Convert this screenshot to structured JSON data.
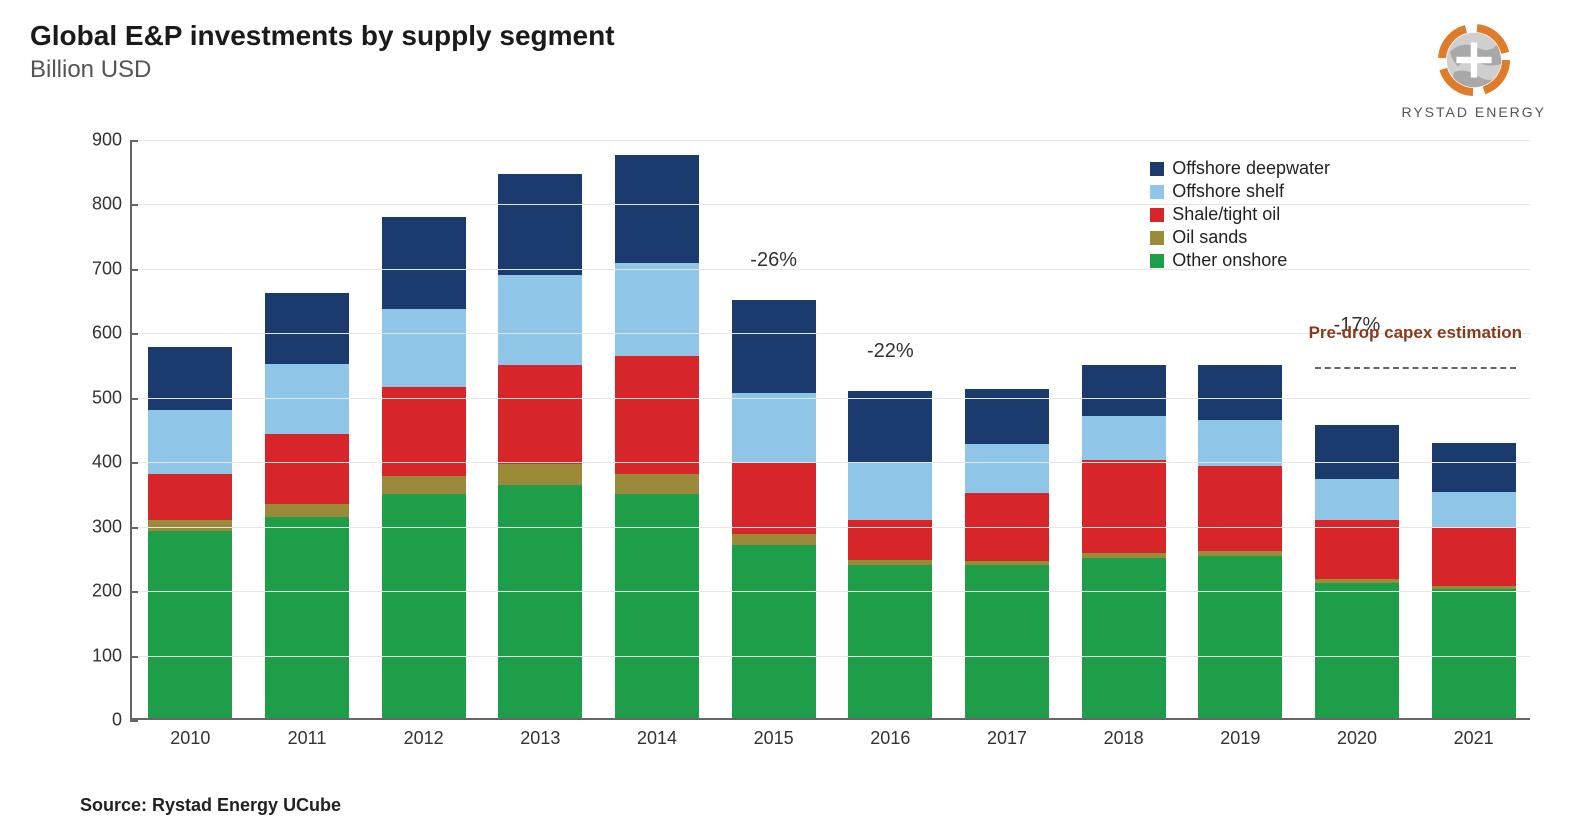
{
  "title": "Global E&P investments by supply segment",
  "subtitle": "Billion USD",
  "brand": {
    "name": "RYSTAD ENERGY",
    "logo_colors": {
      "ring": "#e07b2a",
      "globe": "#bfbfbf",
      "cross": "#ffffff"
    }
  },
  "source": "Source: Rystad Energy UCube",
  "chart": {
    "type": "stacked-bar",
    "ylim": [
      0,
      900
    ],
    "ytick_step": 100,
    "yticks": [
      0,
      100,
      200,
      300,
      400,
      500,
      600,
      700,
      800,
      900
    ],
    "bar_width": 0.72,
    "categories": [
      "2010",
      "2011",
      "2012",
      "2013",
      "2014",
      "2015",
      "2016",
      "2017",
      "2018",
      "2019",
      "2020",
      "2021"
    ],
    "series": [
      {
        "key": "other_onshore",
        "label": "Other onshore",
        "color": "#1f9e4a"
      },
      {
        "key": "oil_sands",
        "label": "Oil sands",
        "color": "#9a8a3a"
      },
      {
        "key": "shale_tight_oil",
        "label": "Shale/tight oil",
        "color": "#d6262a"
      },
      {
        "key": "offshore_shelf",
        "label": "Offshore shelf",
        "color": "#8fc6e8"
      },
      {
        "key": "offshore_deepwater",
        "label": "Offshore deepwater",
        "color": "#1b3b6f"
      }
    ],
    "legend_order": [
      "offshore_deepwater",
      "offshore_shelf",
      "shale_tight_oil",
      "oil_sands",
      "other_onshore"
    ],
    "data": [
      {
        "year": "2010",
        "other_onshore": 290,
        "oil_sands": 18,
        "shale_tight_oil": 70,
        "offshore_shelf": 100,
        "offshore_deepwater": 97
      },
      {
        "year": "2011",
        "other_onshore": 312,
        "oil_sands": 20,
        "shale_tight_oil": 108,
        "offshore_shelf": 110,
        "offshore_deepwater": 110
      },
      {
        "year": "2012",
        "other_onshore": 348,
        "oil_sands": 28,
        "shale_tight_oil": 138,
        "offshore_shelf": 120,
        "offshore_deepwater": 144
      },
      {
        "year": "2013",
        "other_onshore": 362,
        "oil_sands": 32,
        "shale_tight_oil": 154,
        "offshore_shelf": 140,
        "offshore_deepwater": 156
      },
      {
        "year": "2014",
        "other_onshore": 348,
        "oil_sands": 30,
        "shale_tight_oil": 184,
        "offshore_shelf": 144,
        "offshore_deepwater": 168
      },
      {
        "year": "2015",
        "other_onshore": 268,
        "oil_sands": 18,
        "shale_tight_oil": 110,
        "offshore_shelf": 108,
        "offshore_deepwater": 144
      },
      {
        "year": "2016",
        "other_onshore": 237,
        "oil_sands": 8,
        "shale_tight_oil": 62,
        "offshore_shelf": 90,
        "offshore_deepwater": 111
      },
      {
        "year": "2017",
        "other_onshore": 237,
        "oil_sands": 6,
        "shale_tight_oil": 106,
        "offshore_shelf": 76,
        "offshore_deepwater": 86
      },
      {
        "year": "2018",
        "other_onshore": 249,
        "oil_sands": 7,
        "shale_tight_oil": 144,
        "offshore_shelf": 68,
        "offshore_deepwater": 80
      },
      {
        "year": "2019",
        "other_onshore": 252,
        "oil_sands": 7,
        "shale_tight_oil": 132,
        "offshore_shelf": 72,
        "offshore_deepwater": 85
      },
      {
        "year": "2020",
        "other_onshore": 210,
        "oil_sands": 5,
        "shale_tight_oil": 92,
        "offshore_shelf": 64,
        "offshore_deepwater": 84
      },
      {
        "year": "2021",
        "other_onshore": 200,
        "oil_sands": 5,
        "shale_tight_oil": 92,
        "offshore_shelf": 54,
        "offshore_deepwater": 76
      }
    ],
    "annotations": [
      {
        "year": "2015",
        "text": "-26%"
      },
      {
        "year": "2016",
        "text": "-22%"
      },
      {
        "year": "2020",
        "text": "-17%"
      }
    ],
    "predrop": {
      "label": "Pre-drop capex estimation",
      "value": 548,
      "from_year": "2020",
      "to_year": "2021",
      "color": "#8a3a1a",
      "line_color": "#666666"
    },
    "grid_color": "#e6e6e6",
    "axis_color": "#666666",
    "background_color": "#ffffff",
    "label_fontsize": 18,
    "annotation_fontsize": 20,
    "annotation_offset": 30
  }
}
